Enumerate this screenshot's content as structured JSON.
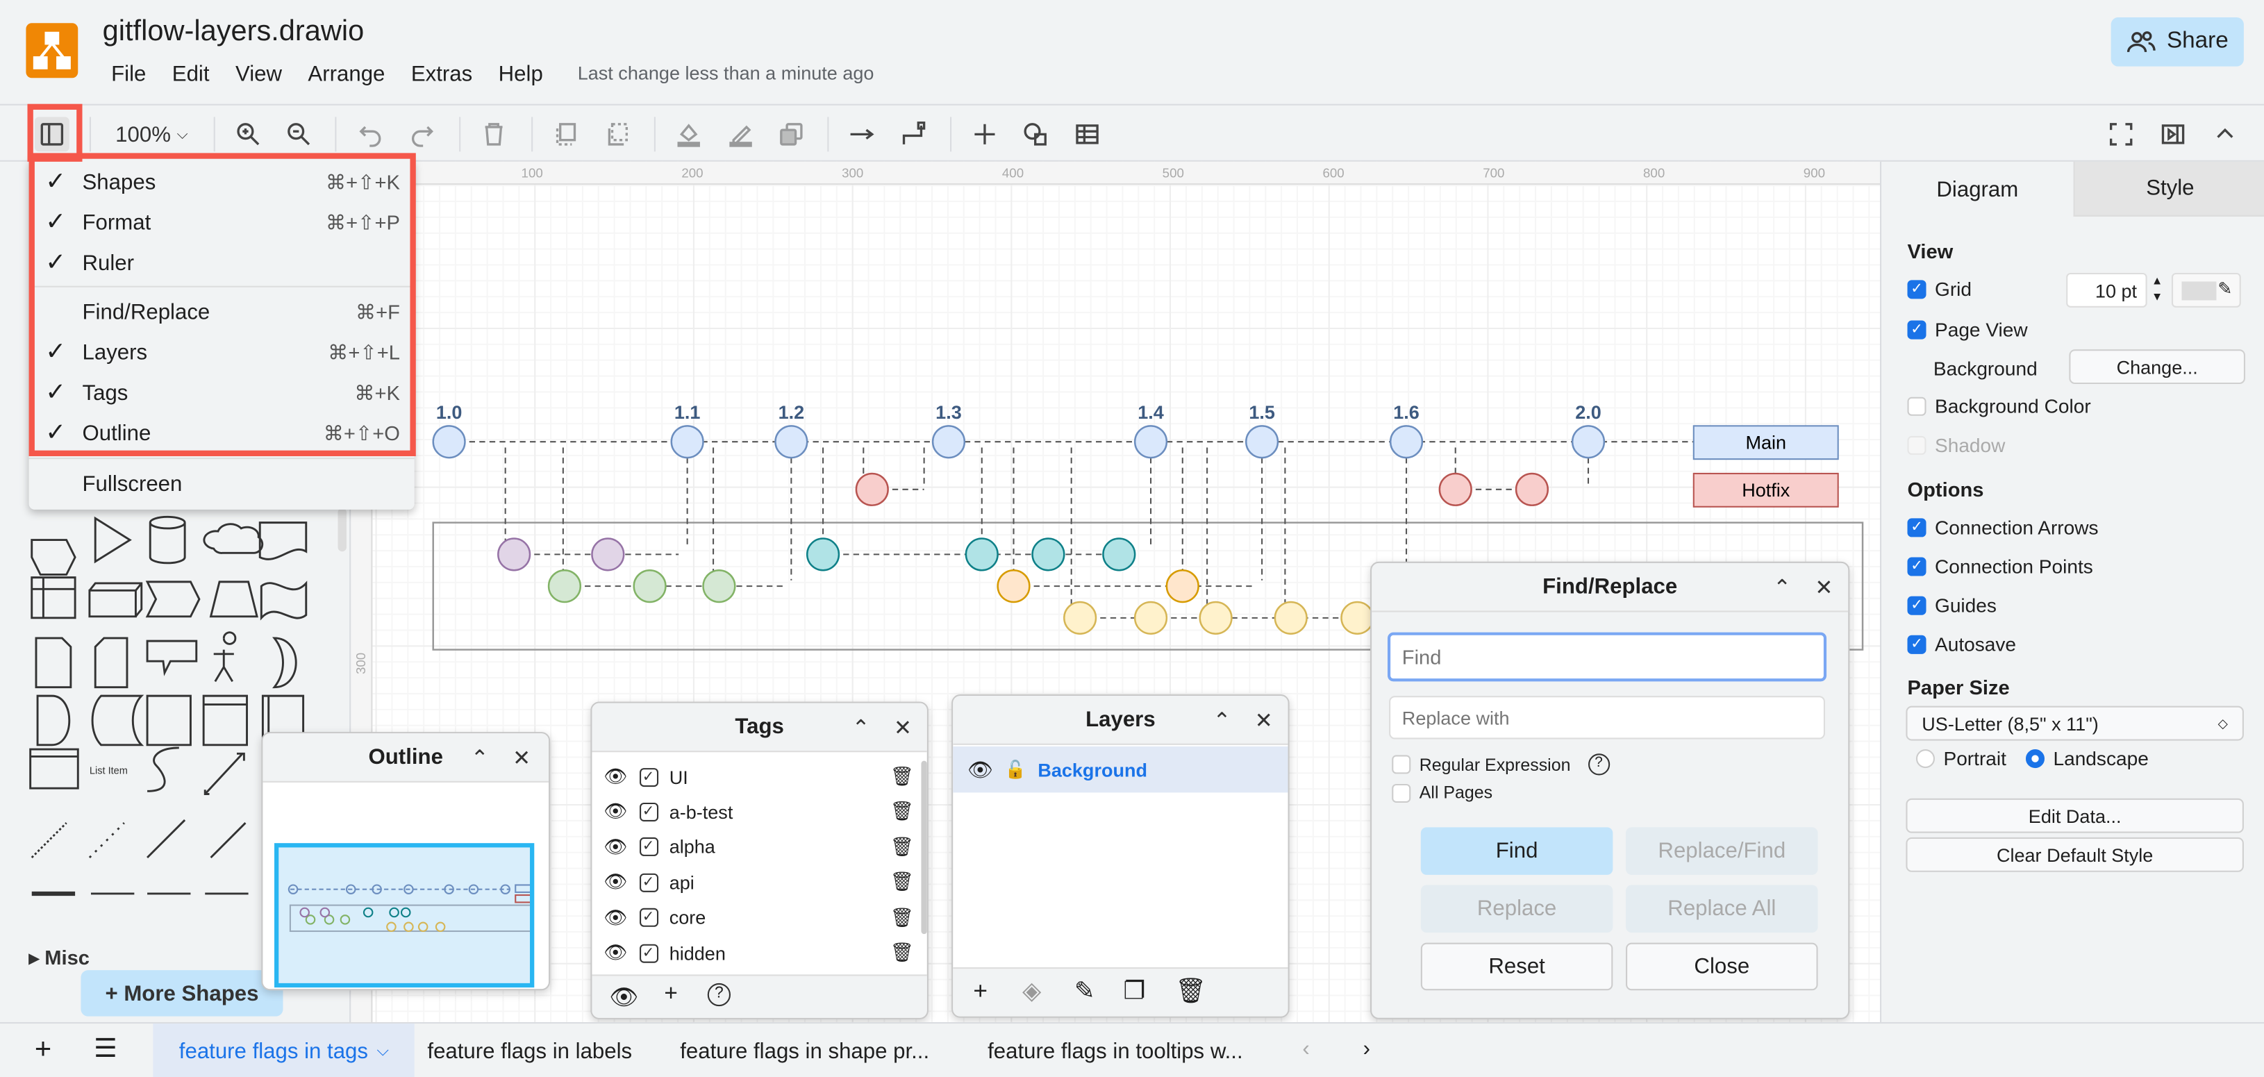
{
  "app": {
    "title": "gitflow-layers.drawio",
    "logo_color": "#f08705",
    "accent": "#1a73e8",
    "highlight": "#f5574a"
  },
  "menubar": {
    "items": [
      "File",
      "Edit",
      "View",
      "Arrange",
      "Extras",
      "Help"
    ],
    "last_change": "Last change less than a minute ago"
  },
  "share": {
    "label": "Share",
    "icon": "users-icon"
  },
  "toolbar": {
    "zoom": "100%"
  },
  "view_menu": {
    "items": [
      {
        "label": "Shapes",
        "checked": true,
        "shortcut": "⌘+⇧+K"
      },
      {
        "label": "Format",
        "checked": true,
        "shortcut": "⌘+⇧+P"
      },
      {
        "label": "Ruler",
        "checked": true,
        "shortcut": ""
      },
      {
        "label": "Find/Replace",
        "checked": false,
        "shortcut": "⌘+F"
      },
      {
        "label": "Layers",
        "checked": true,
        "shortcut": "⌘+⇧+L"
      },
      {
        "label": "Tags",
        "checked": true,
        "shortcut": "⌘+K"
      },
      {
        "label": "Outline",
        "checked": true,
        "shortcut": "⌘+⇧+O"
      },
      {
        "label": "Fullscreen",
        "checked": false,
        "shortcut": ""
      }
    ],
    "check": "✓"
  },
  "ruler": {
    "top": [
      "100",
      "200",
      "300",
      "400",
      "500",
      "600",
      "700",
      "800",
      "900"
    ],
    "left": [
      "300"
    ]
  },
  "sidebar": {
    "list_item": "List Item",
    "misc": "Misc",
    "more_shapes": "+ More Shapes"
  },
  "diagram": {
    "versions": [
      "1.0",
      "1.1",
      "1.2",
      "1.3",
      "1.4",
      "1.5",
      "1.6",
      "2.0"
    ],
    "main_label": "Main",
    "hotfix_label": "Hotfix",
    "colors": {
      "main": "#dae8fc",
      "hotfix": "#f8cecc",
      "purple": "#e1d5e7",
      "teal": "#b0e3e6",
      "green": "#d5e8d4",
      "orange": "#ffe6cc",
      "yellow": "#fff2cc"
    }
  },
  "outline": {
    "title": "Outline"
  },
  "tags": {
    "title": "Tags",
    "items": [
      "UI",
      "a-b-test",
      "alpha",
      "api",
      "core",
      "hidden"
    ]
  },
  "layers": {
    "title": "Layers",
    "items": [
      "Background"
    ]
  },
  "find": {
    "title": "Find/Replace",
    "find_placeholder": "Find",
    "replace_placeholder": "Replace with",
    "regex": "Regular Expression",
    "all_pages": "All Pages",
    "help": "?",
    "buttons": {
      "find": "Find",
      "replace_find": "Replace/Find",
      "replace": "Replace",
      "replace_all": "Replace All",
      "reset": "Reset",
      "close": "Close"
    }
  },
  "format": {
    "tabs": [
      "Diagram",
      "Style"
    ],
    "view": "View",
    "grid": "Grid",
    "grid_size": "10 pt",
    "page_view": "Page View",
    "background": "Background",
    "change": "Change...",
    "background_color": "Background Color",
    "shadow": "Shadow",
    "options": "Options",
    "options_items": [
      "Connection Arrows",
      "Connection Points",
      "Guides",
      "Autosave"
    ],
    "paper_size": "Paper Size",
    "paper": "US-Letter (8,5\" x 11\")",
    "portrait": "Portrait",
    "landscape": "Landscape",
    "orientation": "Landscape",
    "edit_data": "Edit Data...",
    "clear_style": "Clear Default Style"
  },
  "pages": {
    "tabs": [
      "feature flags in tags",
      "feature flags in labels",
      "feature flags in shape pr...",
      "feature flags in tooltips w..."
    ],
    "active": "feature flags in tags"
  }
}
